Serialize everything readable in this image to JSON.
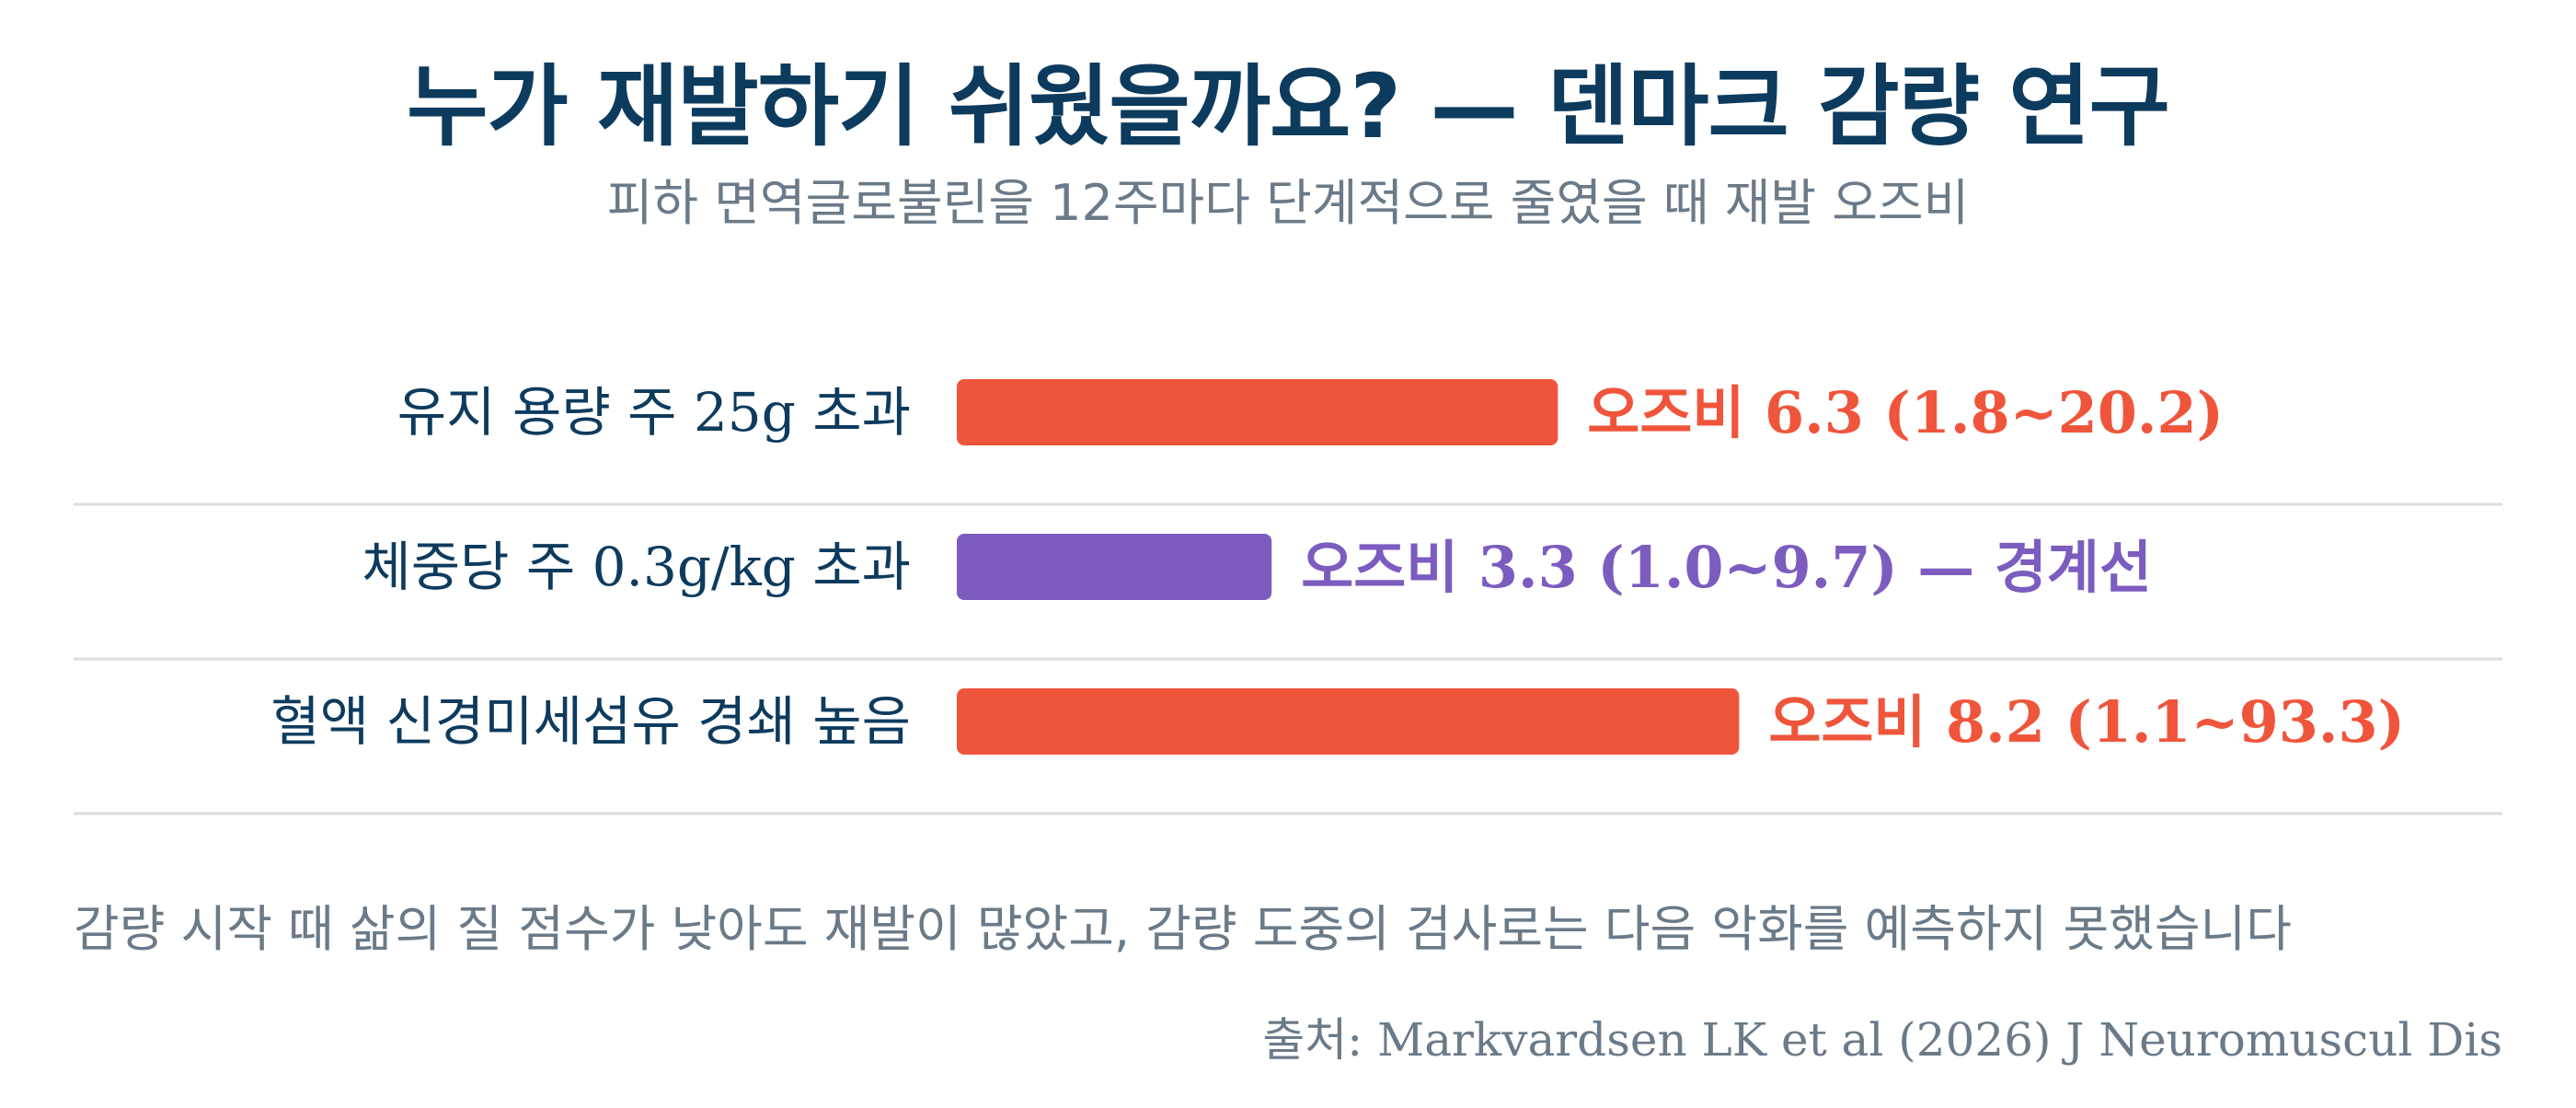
{
  "chart_data": {
    "type": "bar",
    "orientation": "horizontal",
    "title": "누가 재발하기 쉬웠을까요? — 덴마크 감량 연구",
    "subtitle": "피하 면역글로불린을 12주마다 단계적으로 줄였을 때 재발 오즈비",
    "categories": [
      "유지 용량 주 25g 초과",
      "체중당 주 0.3g/kg 초과",
      "혈액 신경미세섬유 경쇄 높음"
    ],
    "values": [
      6.3,
      3.3,
      8.2
    ],
    "ci_low": [
      1.8,
      1.0,
      1.1
    ],
    "ci_high": [
      20.2,
      9.7,
      93.3
    ],
    "value_labels": [
      "오즈비 6.3 (1.8~20.2)",
      "오즈비 3.3 (1.0~9.7) — 경계선",
      "오즈비 8.2 (1.1~93.3)"
    ],
    "colors": [
      "#ef553b",
      "#7c5cbf",
      "#ef553b"
    ],
    "xlim": [
      0,
      10
    ],
    "xlabel": "",
    "ylabel": "",
    "grid": false,
    "note": "감량 시작 때 삶의 질 점수가 낮아도 재발이 많았고, 감량 도중의 검사로는 다음 악화를 예측하지 못했습니다",
    "source": "출처: Markvardsen LK et al (2026) J Neuromuscul Dis"
  },
  "colors": {
    "title": "#0d3b5e",
    "category_label": "#0d3b5e",
    "muted_text": "#6b7a88",
    "divider": "#dddddd"
  }
}
